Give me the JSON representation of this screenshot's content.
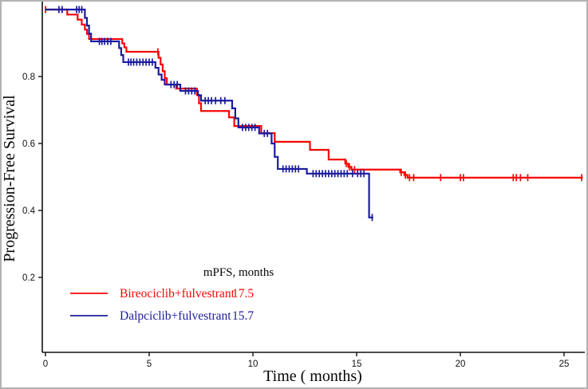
{
  "figure": {
    "background": "#ffffff",
    "border_color": "#b2b2b2",
    "axis_color": "#111111"
  },
  "chart_data": {
    "type": "line",
    "subtype": "kaplan-meier-step",
    "title": "",
    "xlabel": "Time ( months)",
    "ylabel": "Progression-Free Survival",
    "xlim": [
      0,
      26.2
    ],
    "ylim": [
      0.05,
      1.0
    ],
    "x_ticks": [
      "0",
      "5",
      "10",
      "15",
      "20",
      "25"
    ],
    "x_tick_values": [
      0,
      5,
      10,
      15,
      20,
      25
    ],
    "y_ticks": [
      "0.2",
      "0.4",
      "0.6",
      "0.8"
    ],
    "y_tick_values": [
      0.2,
      0.4,
      0.6,
      0.8
    ],
    "grid": "off",
    "legend_position": "inside-lower-left",
    "legend": {
      "title": "mPFS, months",
      "entries": [
        {
          "label": "Bireociclib+fulvestrant",
          "value": "17.5",
          "color": "#f60606"
        },
        {
          "label": "Dalpciclib+fulvestrant",
          "value": "15.7",
          "color": "#1b1b9e"
        }
      ]
    },
    "series": [
      {
        "name": "Bireociclib+fulvestrant",
        "color": "#f60606",
        "median_pfs_months": 17.5,
        "start": [
          0,
          1.0
        ],
        "end_time": 25.9,
        "steps": [
          [
            1.05,
            0.985
          ],
          [
            1.55,
            0.97
          ],
          [
            1.75,
            0.955
          ],
          [
            1.9,
            0.94
          ],
          [
            2.0,
            0.927
          ],
          [
            2.1,
            0.912
          ],
          [
            3.7,
            0.899
          ],
          [
            3.8,
            0.887
          ],
          [
            3.9,
            0.874
          ],
          [
            5.45,
            0.856
          ],
          [
            5.55,
            0.836
          ],
          [
            5.65,
            0.816
          ],
          [
            5.75,
            0.795
          ],
          [
            5.85,
            0.776
          ],
          [
            6.3,
            0.764
          ],
          [
            7.3,
            0.745
          ],
          [
            7.4,
            0.72
          ],
          [
            7.5,
            0.697
          ],
          [
            8.85,
            0.678
          ],
          [
            9.1,
            0.652
          ],
          [
            10.4,
            0.631
          ],
          [
            11.05,
            0.605
          ],
          [
            12.75,
            0.581
          ],
          [
            13.65,
            0.552
          ],
          [
            14.45,
            0.54
          ],
          [
            14.6,
            0.53
          ],
          [
            14.75,
            0.522
          ],
          [
            17.1,
            0.514
          ],
          [
            17.3,
            0.506
          ],
          [
            17.45,
            0.498
          ]
        ],
        "censor_times": [
          0.0,
          5.42,
          14.5,
          14.65,
          14.9,
          17.15,
          17.35,
          17.55,
          17.75,
          19.05,
          20.0,
          20.15,
          22.55,
          22.7,
          22.9,
          23.25,
          25.85
        ]
      },
      {
        "name": "Dalpciclib+fulvestrant",
        "color": "#1b1b9e",
        "median_pfs_months": 15.7,
        "start": [
          0,
          1.0
        ],
        "end_time": 15.8,
        "steps": [
          [
            1.9,
            0.975
          ],
          [
            2.0,
            0.952
          ],
          [
            2.1,
            0.928
          ],
          [
            2.2,
            0.905
          ],
          [
            3.55,
            0.885
          ],
          [
            3.65,
            0.864
          ],
          [
            3.75,
            0.843
          ],
          [
            5.3,
            0.826
          ],
          [
            5.45,
            0.806
          ],
          [
            5.6,
            0.79
          ],
          [
            5.75,
            0.776
          ],
          [
            6.5,
            0.757
          ],
          [
            7.35,
            0.744
          ],
          [
            7.5,
            0.728
          ],
          [
            9.0,
            0.705
          ],
          [
            9.15,
            0.675
          ],
          [
            9.3,
            0.648
          ],
          [
            10.3,
            0.63
          ],
          [
            10.9,
            0.6
          ],
          [
            11.05,
            0.56
          ],
          [
            11.2,
            0.524
          ],
          [
            12.6,
            0.51
          ],
          [
            15.6,
            0.379
          ]
        ],
        "censor_times": [
          0.65,
          0.8,
          1.5,
          1.62,
          1.75,
          2.6,
          2.72,
          2.85,
          3.0,
          3.15,
          4.0,
          4.12,
          4.25,
          4.4,
          4.55,
          4.7,
          4.85,
          5.0,
          5.15,
          6.05,
          6.2,
          6.35,
          6.75,
          6.9,
          7.05,
          7.2,
          7.7,
          7.85,
          8.0,
          8.2,
          8.45,
          8.65,
          9.5,
          9.65,
          9.8,
          9.95,
          10.1,
          10.55,
          10.7,
          11.45,
          11.6,
          11.75,
          11.9,
          12.05,
          12.2,
          12.9,
          13.05,
          13.2,
          13.35,
          13.5,
          13.65,
          13.8,
          13.95,
          14.1,
          14.25,
          14.4,
          14.55,
          14.8,
          15.05,
          15.2,
          15.35,
          15.75
        ]
      }
    ]
  }
}
